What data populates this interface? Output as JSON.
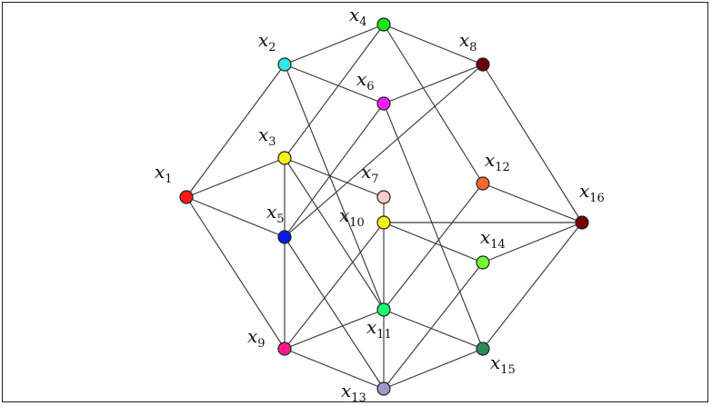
{
  "graph": {
    "vertices": [
      {
        "id": "x1",
        "label": "x",
        "subscript": "1",
        "color": "#ff1a1a"
      },
      {
        "id": "x2",
        "label": "x",
        "subscript": "2",
        "color": "#33e6e6"
      },
      {
        "id": "x3",
        "label": "x",
        "subscript": "3",
        "color": "#f5f51a"
      },
      {
        "id": "x4",
        "label": "x",
        "subscript": "4",
        "color": "#1ae61a"
      },
      {
        "id": "x5",
        "label": "x",
        "subscript": "5",
        "color": "#0a1ae6"
      },
      {
        "id": "x6",
        "label": "x",
        "subscript": "6",
        "color": "#ff1aff"
      },
      {
        "id": "x7",
        "label": "x",
        "subscript": "7",
        "color": "#ffcccc"
      },
      {
        "id": "x8",
        "label": "x",
        "subscript": "8",
        "color": "#6b0000"
      },
      {
        "id": "x9",
        "label": "x",
        "subscript": "9",
        "color": "#ff1a8c"
      },
      {
        "id": "x10",
        "label": "x",
        "subscript": "10",
        "color": "#f5f51a"
      },
      {
        "id": "x11",
        "label": "x",
        "subscript": "11",
        "color": "#1aff73"
      },
      {
        "id": "x12",
        "label": "x",
        "subscript": "12",
        "color": "#ff6633"
      },
      {
        "id": "x13",
        "label": "x",
        "subscript": "13",
        "color": "#9999cc"
      },
      {
        "id": "x14",
        "label": "x",
        "subscript": "14",
        "color": "#73ff33"
      },
      {
        "id": "x15",
        "label": "x",
        "subscript": "15",
        "color": "#2e8b57"
      },
      {
        "id": "x16",
        "label": "x",
        "subscript": "16",
        "color": "#7a0000"
      }
    ],
    "edges": [
      [
        "x1",
        "x2"
      ],
      [
        "x1",
        "x3"
      ],
      [
        "x1",
        "x5"
      ],
      [
        "x1",
        "x9"
      ],
      [
        "x2",
        "x4"
      ],
      [
        "x2",
        "x6"
      ],
      [
        "x2",
        "x11"
      ],
      [
        "x3",
        "x4"
      ],
      [
        "x3",
        "x7"
      ],
      [
        "x3",
        "x11"
      ],
      [
        "x4",
        "x8"
      ],
      [
        "x4",
        "x12"
      ],
      [
        "x5",
        "x6"
      ],
      [
        "x5",
        "x8"
      ],
      [
        "x5",
        "x13"
      ],
      [
        "x6",
        "x8"
      ],
      [
        "x6",
        "x15"
      ],
      [
        "x7",
        "x13"
      ],
      [
        "x8",
        "x16"
      ],
      [
        "x9",
        "x10"
      ],
      [
        "x9",
        "x11"
      ],
      [
        "x9",
        "x13"
      ],
      [
        "x10",
        "x14"
      ],
      [
        "x10",
        "x16"
      ],
      [
        "x11",
        "x12"
      ],
      [
        "x11",
        "x15"
      ],
      [
        "x12",
        "x16"
      ],
      [
        "x13",
        "x14"
      ],
      [
        "x13",
        "x15"
      ],
      [
        "x14",
        "x16"
      ],
      [
        "x15",
        "x16"
      ],
      [
        "x3",
        "x9"
      ]
    ]
  }
}
